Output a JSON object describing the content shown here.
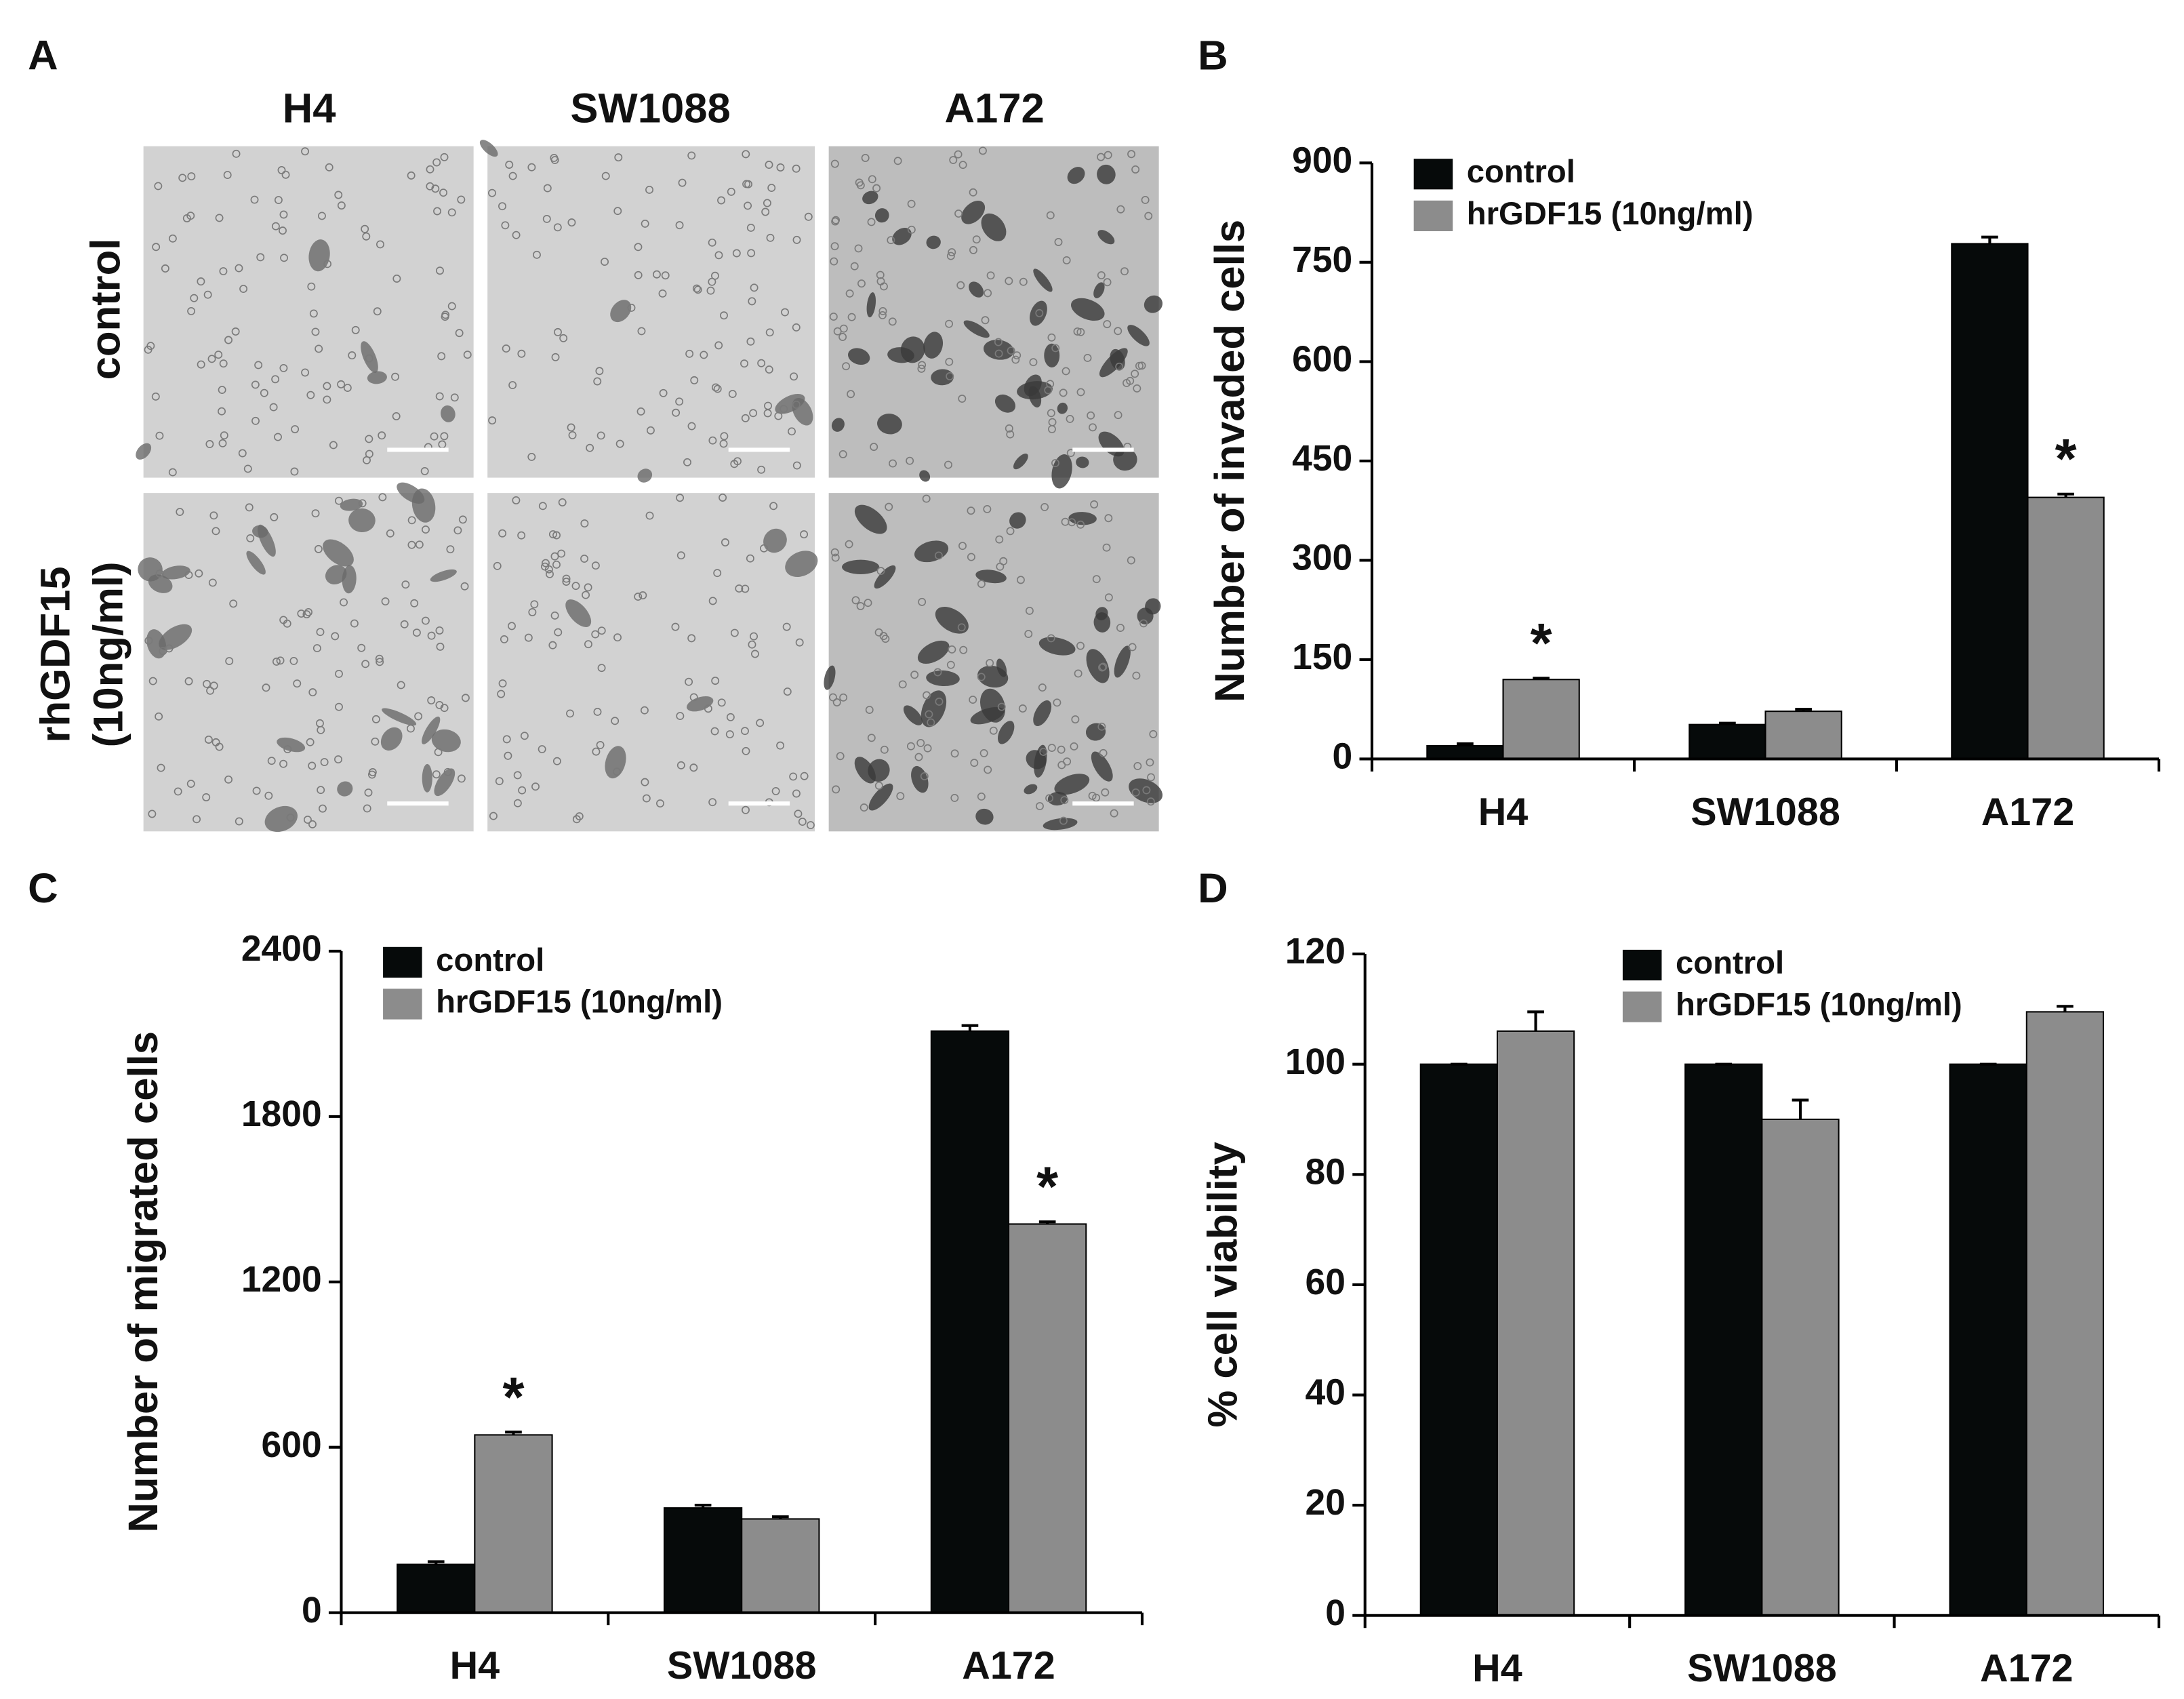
{
  "panel_labels": [
    "A",
    "B",
    "C",
    "D"
  ],
  "panel_a": {
    "columns": [
      "H4",
      "SW1088",
      "A172"
    ],
    "rows": [
      [
        "control"
      ],
      [
        "rhGDF15",
        "(10ng/ml)"
      ]
    ]
  },
  "chart_data": [
    {
      "type": "bar",
      "ylabel": "Number of invaded cells",
      "categories": [
        "H4",
        "SW1088",
        "A172"
      ],
      "ylim": [
        0,
        900
      ],
      "yticks": [
        0,
        150,
        300,
        450,
        600,
        750,
        900
      ],
      "legend": "upper left",
      "series": [
        {
          "name": "control",
          "color": "#060a0a",
          "values": [
            20,
            52,
            778
          ],
          "errors": [
            3,
            2,
            10
          ]
        },
        {
          "name": "hrGDF15 (10ng/ml)",
          "color": "#8c8c8c",
          "values": [
            120,
            72,
            395
          ],
          "errors": [
            2,
            3,
            5
          ],
          "annotations": [
            "*",
            null,
            "*"
          ]
        }
      ]
    },
    {
      "type": "bar",
      "ylabel": "Number of migrated cells",
      "categories": [
        "H4",
        "SW1088",
        "A172"
      ],
      "ylim": [
        0,
        2400
      ],
      "yticks": [
        0,
        600,
        1200,
        1800,
        2400
      ],
      "legend": "upper left",
      "series": [
        {
          "name": "control",
          "color": "#060a0a",
          "values": [
            175,
            380,
            2110
          ],
          "errors": [
            10,
            10,
            20
          ]
        },
        {
          "name": "hrGDF15 (10ng/ml)",
          "color": "#8c8c8c",
          "values": [
            645,
            340,
            1410
          ],
          "errors": [
            10,
            8,
            8
          ],
          "annotations": [
            "*",
            null,
            "*"
          ]
        }
      ]
    },
    {
      "type": "bar",
      "ylabel": "% cell viability",
      "categories": [
        "H4",
        "SW1088",
        "A172"
      ],
      "ylim": [
        0,
        120
      ],
      "yticks": [
        0,
        20,
        40,
        60,
        80,
        100,
        120
      ],
      "legend": "upper center",
      "series": [
        {
          "name": "control",
          "color": "#060a0a",
          "values": [
            100,
            100,
            100
          ],
          "errors": [
            0,
            0,
            0
          ]
        },
        {
          "name": "hrGDF15 (10ng/ml)",
          "color": "#8c8c8c",
          "values": [
            106,
            90,
            109.5
          ],
          "errors": [
            3.5,
            3.5,
            1
          ]
        }
      ]
    }
  ]
}
